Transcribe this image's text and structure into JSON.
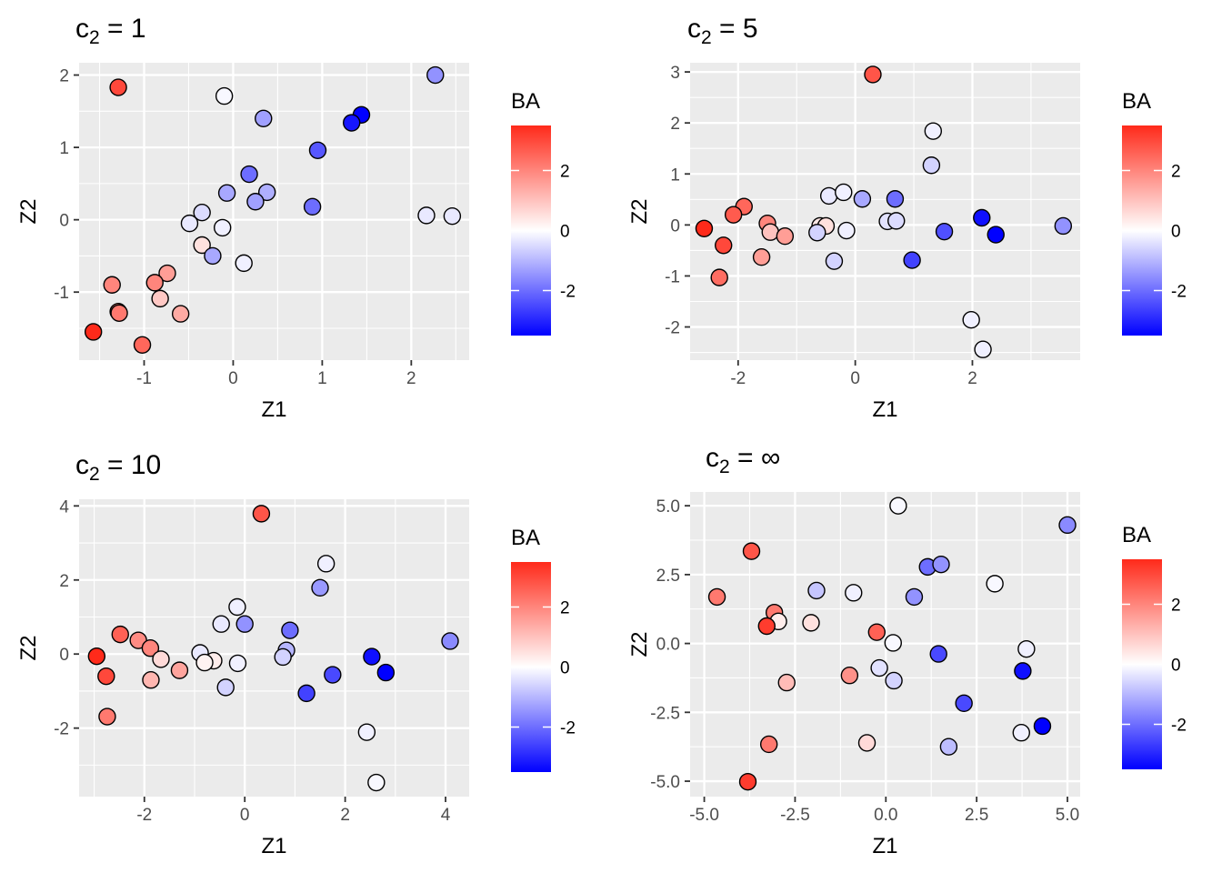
{
  "legend": {
    "title": "BA",
    "ticks": [
      2,
      0,
      -2
    ],
    "range": [
      -3.5,
      3.5
    ],
    "colors": {
      "low": "#0000ff",
      "mid": "#ffffff",
      "high": "#ff2a1a"
    }
  },
  "chart_data": [
    {
      "type": "scatter",
      "title_main": "c",
      "title_sub": "2",
      "title_rest": " = 1",
      "xlabel": "Z1",
      "ylabel": "Z2",
      "xlim": [
        -1.73,
        2.65
      ],
      "ylim": [
        -1.94,
        2.17
      ],
      "xticks": [
        -1,
        0,
        1,
        2
      ],
      "yticks": [
        -1,
        0,
        1,
        2
      ],
      "xticklabels": [
        "-1",
        "0",
        "1",
        "2"
      ],
      "yticklabels": [
        "-1",
        "0",
        "1",
        "2"
      ],
      "points": [
        [
          -1.29,
          1.83,
          3.0
        ],
        [
          -0.1,
          1.71,
          -0.1
        ],
        [
          2.27,
          2.0,
          -1.5
        ],
        [
          0.34,
          1.4,
          -1.3
        ],
        [
          1.44,
          1.45,
          -3.5
        ],
        [
          1.33,
          1.34,
          -3.2
        ],
        [
          0.95,
          0.96,
          -2.3
        ],
        [
          0.18,
          0.63,
          -2.0
        ],
        [
          -0.07,
          0.37,
          -1.2
        ],
        [
          0.38,
          0.38,
          -1.1
        ],
        [
          0.25,
          0.25,
          -1.3
        ],
        [
          0.89,
          0.18,
          -2.0
        ],
        [
          -0.35,
          0.1,
          -0.5
        ],
        [
          -0.49,
          -0.05,
          -0.3
        ],
        [
          -0.12,
          -0.11,
          -0.2
        ],
        [
          2.17,
          0.06,
          -0.3
        ],
        [
          2.46,
          0.05,
          -0.3
        ],
        [
          -0.35,
          -0.35,
          0.5
        ],
        [
          -0.23,
          -0.5,
          -1.2
        ],
        [
          0.12,
          -0.6,
          -0.2
        ],
        [
          -0.74,
          -0.74,
          1.6
        ],
        [
          -0.88,
          -0.87,
          2.0
        ],
        [
          -1.36,
          -0.9,
          2.0
        ],
        [
          -0.82,
          -1.09,
          0.9
        ],
        [
          -1.29,
          -1.27,
          2.1
        ],
        [
          -1.28,
          -1.29,
          2.2
        ],
        [
          -0.59,
          -1.3,
          1.4
        ],
        [
          -1.57,
          -1.55,
          3.5
        ],
        [
          -1.02,
          -1.73,
          2.5
        ]
      ]
    },
    {
      "type": "scatter",
      "title_main": "c",
      "title_sub": "2",
      "title_rest": " = 5",
      "xlabel": "Z1",
      "ylabel": "Z2",
      "xlim": [
        -2.82,
        3.84
      ],
      "ylim": [
        -2.65,
        3.18
      ],
      "xticks": [
        -2,
        0,
        2
      ],
      "yticks": [
        -2,
        -1,
        0,
        1,
        2,
        3
      ],
      "xticklabels": [
        "-2",
        "0",
        "2"
      ],
      "yticklabels": [
        "-2",
        "-1",
        "0",
        "1",
        "2",
        "3"
      ],
      "points": [
        [
          0.3,
          2.95,
          2.8
        ],
        [
          1.33,
          1.84,
          -0.2
        ],
        [
          1.3,
          1.17,
          -0.6
        ],
        [
          -0.45,
          0.57,
          -0.3
        ],
        [
          -0.2,
          0.64,
          -0.2
        ],
        [
          0.12,
          0.51,
          -1.2
        ],
        [
          0.68,
          0.51,
          -2.0
        ],
        [
          0.55,
          0.07,
          -0.4
        ],
        [
          0.7,
          0.08,
          -0.5
        ],
        [
          -1.9,
          0.36,
          2.5
        ],
        [
          -2.08,
          0.2,
          2.7
        ],
        [
          -1.5,
          0.03,
          2.0
        ],
        [
          -0.6,
          -0.02,
          0.4
        ],
        [
          -0.5,
          -0.02,
          0.5
        ],
        [
          -0.65,
          -0.15,
          -0.6
        ],
        [
          -0.15,
          -0.11,
          -0.2
        ],
        [
          -2.58,
          -0.07,
          3.5
        ],
        [
          -1.45,
          -0.14,
          1.0
        ],
        [
          -1.2,
          -0.22,
          1.6
        ],
        [
          -2.25,
          -0.4,
          3.0
        ],
        [
          -1.6,
          -0.63,
          1.6
        ],
        [
          -0.36,
          -0.71,
          -0.6
        ],
        [
          0.97,
          -0.69,
          -2.6
        ],
        [
          1.52,
          -0.13,
          -2.4
        ],
        [
          2.16,
          0.14,
          -3.3
        ],
        [
          2.4,
          -0.19,
          -3.5
        ],
        [
          3.55,
          -0.02,
          -1.5
        ],
        [
          -2.32,
          -1.03,
          2.4
        ],
        [
          1.98,
          -1.86,
          -0.2
        ],
        [
          2.18,
          -2.44,
          -0.2
        ]
      ]
    },
    {
      "type": "scatter",
      "title_main": "c",
      "title_sub": "2",
      "title_rest": " = 10",
      "xlabel": "Z1",
      "ylabel": "Z2",
      "xlim": [
        -3.3,
        4.47
      ],
      "ylim": [
        -3.85,
        4.18
      ],
      "xticks": [
        -2,
        0,
        2,
        4
      ],
      "yticks": [
        -2,
        0,
        2,
        4
      ],
      "xticklabels": [
        "-2",
        "0",
        "2",
        "4"
      ],
      "yticklabels": [
        "-2",
        "0",
        "2",
        "4"
      ],
      "points": [
        [
          0.33,
          3.79,
          2.8
        ],
        [
          1.62,
          2.44,
          -0.2
        ],
        [
          1.5,
          1.79,
          -1.4
        ],
        [
          -0.15,
          1.27,
          -0.2
        ],
        [
          -0.47,
          0.81,
          -0.3
        ],
        [
          0.0,
          0.81,
          -1.5
        ],
        [
          0.9,
          0.64,
          -2.0
        ],
        [
          0.83,
          0.1,
          -1.0
        ],
        [
          0.76,
          -0.08,
          -0.6
        ],
        [
          -2.48,
          0.53,
          2.6
        ],
        [
          -2.12,
          0.37,
          1.9
        ],
        [
          -1.88,
          0.16,
          2.0
        ],
        [
          -0.89,
          0.03,
          -0.3
        ],
        [
          -0.62,
          -0.18,
          0.3
        ],
        [
          -0.8,
          -0.23,
          0.2
        ],
        [
          -1.67,
          -0.14,
          0.6
        ],
        [
          -0.14,
          -0.25,
          -0.2
        ],
        [
          -2.95,
          -0.06,
          3.5
        ],
        [
          -1.3,
          -0.44,
          1.5
        ],
        [
          -2.76,
          -0.6,
          3.0
        ],
        [
          -1.87,
          -0.7,
          1.2
        ],
        [
          -0.38,
          -0.9,
          -0.6
        ],
        [
          1.75,
          -0.56,
          -2.5
        ],
        [
          1.23,
          -1.06,
          -2.6
        ],
        [
          2.53,
          -0.07,
          -3.3
        ],
        [
          2.81,
          -0.5,
          -3.5
        ],
        [
          4.09,
          0.35,
          -1.6
        ],
        [
          -2.74,
          -1.69,
          2.2
        ],
        [
          2.43,
          -2.11,
          -0.2
        ],
        [
          2.62,
          -3.47,
          -0.1
        ]
      ]
    },
    {
      "type": "scatter",
      "title_main": "c",
      "title_sub": "2",
      "title_rest": " = ∞",
      "xlabel": "Z1",
      "ylabel": "Z2",
      "xlim": [
        -5.39,
        5.35
      ],
      "ylim": [
        -5.56,
        5.5
      ],
      "xticks": [
        -5.0,
        -2.5,
        0.0,
        2.5,
        5.0
      ],
      "yticks": [
        -5.0,
        -2.5,
        0.0,
        2.5,
        5.0
      ],
      "xticklabels": [
        "-5.0",
        "-2.5",
        "0.0",
        "2.5",
        "5.0"
      ],
      "yticklabels": [
        "-5.0",
        "-2.5",
        "0.0",
        "2.5",
        "5.0"
      ],
      "points": [
        [
          0.34,
          5.0,
          -0.1
        ],
        [
          5.0,
          4.3,
          -1.6
        ],
        [
          -3.7,
          3.35,
          2.8
        ],
        [
          1.15,
          2.78,
          -2.0
        ],
        [
          1.52,
          2.87,
          -1.5
        ],
        [
          3.0,
          2.17,
          -0.1
        ],
        [
          -4.65,
          1.69,
          2.2
        ],
        [
          -1.91,
          1.92,
          -0.8
        ],
        [
          -0.89,
          1.84,
          -0.2
        ],
        [
          0.78,
          1.69,
          -1.5
        ],
        [
          -3.07,
          1.12,
          2.2
        ],
        [
          -2.96,
          0.8,
          0.3
        ],
        [
          -3.28,
          0.63,
          3.2
        ],
        [
          -2.06,
          0.75,
          0.5
        ],
        [
          -0.25,
          0.41,
          2.6
        ],
        [
          0.2,
          0.02,
          -0.1
        ],
        [
          3.87,
          -0.2,
          -0.2
        ],
        [
          1.45,
          -0.38,
          -2.5
        ],
        [
          3.77,
          -1.0,
          -3.3
        ],
        [
          -2.73,
          -1.42,
          1.1
        ],
        [
          -1.0,
          -1.16,
          1.8
        ],
        [
          -0.18,
          -0.89,
          -0.4
        ],
        [
          0.22,
          -1.35,
          -0.6
        ],
        [
          2.15,
          -2.17,
          -2.5
        ],
        [
          -3.22,
          -3.66,
          2.2
        ],
        [
          -0.52,
          -3.61,
          0.6
        ],
        [
          1.73,
          -3.75,
          -0.9
        ],
        [
          3.73,
          -3.24,
          -0.2
        ],
        [
          4.31,
          -3.0,
          -3.5
        ],
        [
          -3.8,
          -5.02,
          3.2
        ]
      ]
    }
  ]
}
